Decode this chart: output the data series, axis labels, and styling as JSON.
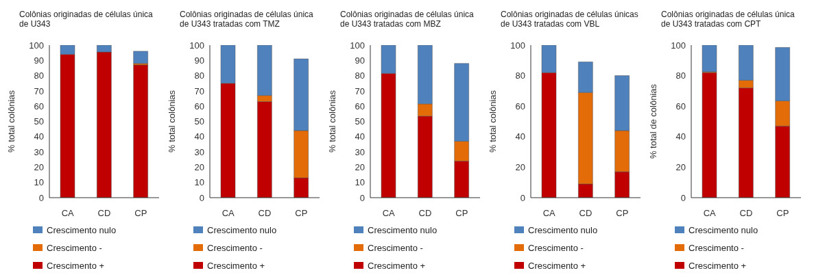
{
  "chart_data": [
    {
      "type": "bar",
      "stacked": true,
      "title": "Colônias originadas de células única de U343",
      "ylabel": "% total colônias",
      "categories": [
        "CA",
        "CD",
        "CP"
      ],
      "ylim": [
        0,
        100
      ],
      "yticks": [
        0,
        10,
        20,
        30,
        40,
        50,
        60,
        70,
        80,
        90,
        100
      ],
      "grid": false,
      "legend": "bottom",
      "series": [
        {
          "name": "Crescimento +",
          "color": "#c00000",
          "values": [
            94,
            95.5,
            87
          ]
        },
        {
          "name": "Crescimento -",
          "color": "#e36c09",
          "values": [
            0,
            0,
            1
          ]
        },
        {
          "name": "Crescimento nulo",
          "color": "#4f81bd",
          "values": [
            6,
            4.5,
            8
          ]
        }
      ]
    },
    {
      "type": "bar",
      "stacked": true,
      "title": "Colônias originadas de células única de U343 tratadas com TMZ",
      "ylabel": "% total colônias",
      "categories": [
        "CA",
        "CD",
        "CP"
      ],
      "ylim": [
        0,
        100
      ],
      "yticks": [
        0,
        10,
        20,
        30,
        40,
        50,
        60,
        70,
        80,
        90,
        100
      ],
      "grid": false,
      "legend": "bottom",
      "series": [
        {
          "name": "Crescimento +",
          "color": "#c00000",
          "values": [
            75,
            63,
            13
          ]
        },
        {
          "name": "Crescimento -",
          "color": "#e36c09",
          "values": [
            0,
            4,
            31
          ]
        },
        {
          "name": "Crescimento nulo",
          "color": "#4f81bd",
          "values": [
            25,
            33,
            47
          ]
        }
      ]
    },
    {
      "type": "bar",
      "stacked": true,
      "title": "Colônias originadas de células única de U343 tratadas com MBZ",
      "ylabel": "% total colônias",
      "categories": [
        "CA",
        "CD",
        "CP"
      ],
      "ylim": [
        0,
        100
      ],
      "yticks": [
        0,
        10,
        20,
        30,
        40,
        50,
        60,
        70,
        80,
        90,
        100
      ],
      "grid": false,
      "legend": "bottom",
      "series": [
        {
          "name": "Crescimento +",
          "color": "#c00000",
          "values": [
            81.5,
            53.5,
            24
          ]
        },
        {
          "name": "Crescimento -",
          "color": "#e36c09",
          "values": [
            0,
            8,
            13
          ]
        },
        {
          "name": "Crescimento nulo",
          "color": "#4f81bd",
          "values": [
            18.5,
            38.5,
            51
          ]
        }
      ]
    },
    {
      "type": "bar",
      "stacked": true,
      "title": "Colônias originadas de células únicas de U343 tratadas com VBL",
      "ylabel": "% total colônias",
      "categories": [
        "CA",
        "CD",
        "CP"
      ],
      "ylim": [
        0,
        100
      ],
      "yticks": [
        0,
        20,
        40,
        60,
        80,
        100
      ],
      "grid": false,
      "legend": "bottom",
      "series": [
        {
          "name": "Crescimento +",
          "color": "#c00000",
          "values": [
            82,
            9,
            17
          ]
        },
        {
          "name": "Crescimento -",
          "color": "#e36c09",
          "values": [
            0,
            60,
            27
          ]
        },
        {
          "name": "Crescimento nulo",
          "color": "#4f81bd",
          "values": [
            18,
            20,
            36
          ]
        }
      ]
    },
    {
      "type": "bar",
      "stacked": true,
      "title": "Colônias originadas de células única de U343 tratadas com CPT",
      "ylabel": "% total de colônias",
      "categories": [
        "CA",
        "CD",
        "CP"
      ],
      "ylim": [
        0,
        100
      ],
      "yticks": [
        0,
        20,
        40,
        60,
        80,
        100
      ],
      "grid": false,
      "legend": "bottom",
      "series": [
        {
          "name": "Crescimento +",
          "color": "#c00000",
          "values": [
            82,
            72,
            47
          ]
        },
        {
          "name": "Crescimento -",
          "color": "#e36c09",
          "values": [
            0.5,
            5,
            16.5
          ]
        },
        {
          "name": "Crescimento nulo",
          "color": "#4f81bd",
          "values": [
            17.5,
            23,
            35
          ]
        }
      ]
    }
  ]
}
